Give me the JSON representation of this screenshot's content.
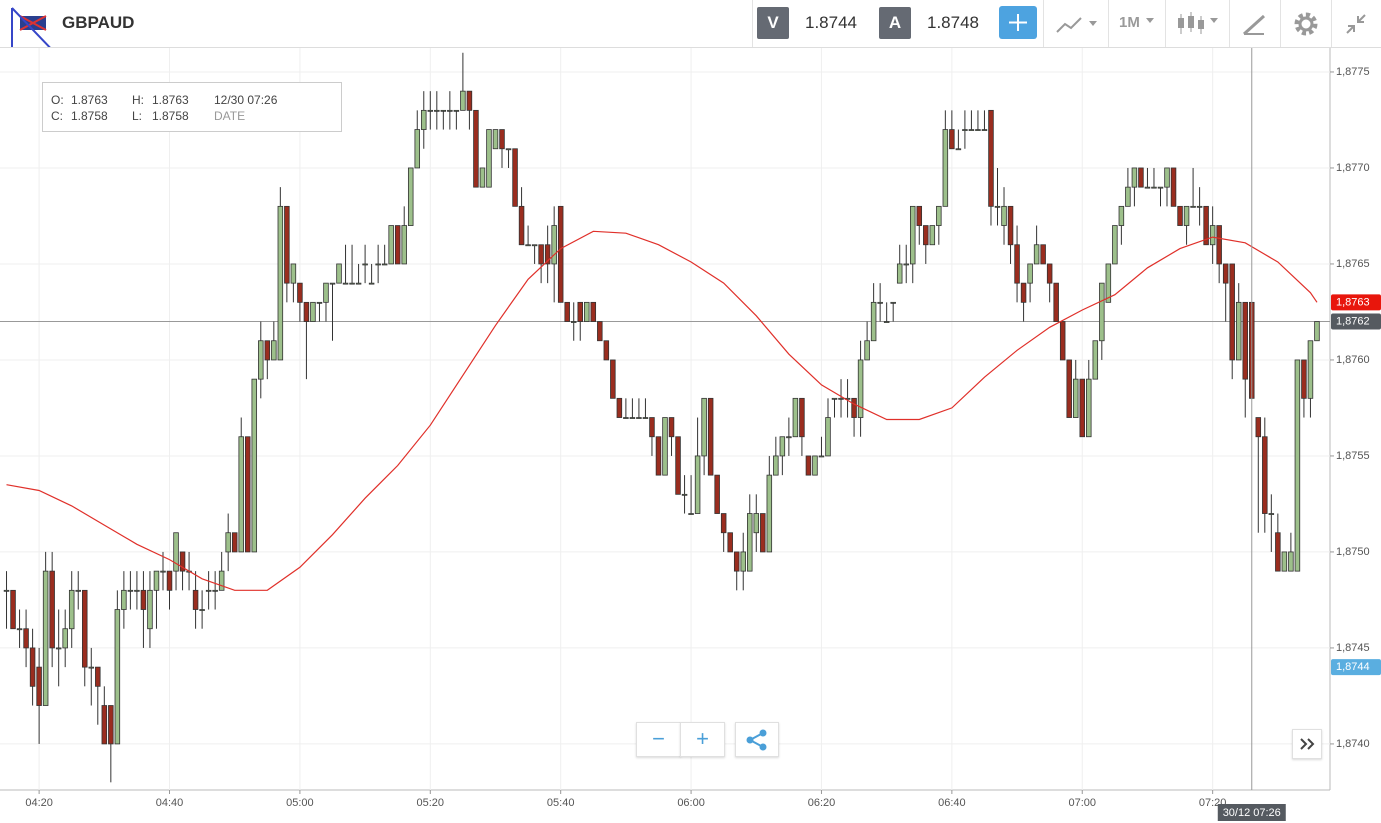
{
  "header": {
    "symbol": "GBPAUD",
    "sell_label": "V",
    "sell_price": "1.8744",
    "buy_label": "A",
    "buy_price": "1.8748",
    "timeframe": "1M"
  },
  "info": {
    "open_label": "O:",
    "open": "1.8763",
    "high_label": "H:",
    "high": "1.8763",
    "date": "12/30 07:26",
    "close_label": "C:",
    "close": "1.8758",
    "low_label": "L:",
    "low": "1.8758",
    "date_label": "DATE"
  },
  "chart_data": {
    "type": "candlestick",
    "up_color": "#9dc08b",
    "down_color": "#9a2d1f",
    "grid": true,
    "xlim": [
      "04:14",
      "07:38"
    ],
    "xticks": [
      "04:20",
      "04:40",
      "05:00",
      "05:20",
      "05:40",
      "06:00",
      "06:20",
      "06:40",
      "07:00",
      "07:20"
    ],
    "ylim": [
      1.87376,
      1.87763
    ],
    "yticks": [
      {
        "value": 1.874,
        "label": "1,8740"
      },
      {
        "value": 1.8745,
        "label": "1,8745"
      },
      {
        "value": 1.875,
        "label": "1,8750"
      },
      {
        "value": 1.8755,
        "label": "1,8755"
      },
      {
        "value": 1.876,
        "label": "1,8760"
      },
      {
        "value": 1.8765,
        "label": "1,8765"
      },
      {
        "value": 1.877,
        "label": "1,8770"
      },
      {
        "value": 1.8775,
        "label": "1,8775"
      }
    ],
    "x": [
      "04:15",
      "04:16",
      "04:17",
      "04:18",
      "04:19",
      "04:20",
      "04:21",
      "04:22",
      "04:23",
      "04:24",
      "04:25",
      "04:26",
      "04:27",
      "04:28",
      "04:29",
      "04:30",
      "04:31",
      "04:32",
      "04:33",
      "04:34",
      "04:35",
      "04:36",
      "04:37",
      "04:38",
      "04:39",
      "04:40",
      "04:41",
      "04:42",
      "04:43",
      "04:44",
      "04:45",
      "04:46",
      "04:47",
      "04:48",
      "04:49",
      "04:50",
      "04:51",
      "04:52",
      "04:53",
      "04:54",
      "04:55",
      "04:56",
      "04:57",
      "04:58",
      "04:59",
      "05:00",
      "05:01",
      "05:02",
      "05:03",
      "05:04",
      "05:05",
      "05:06",
      "05:07",
      "05:08",
      "05:09",
      "05:10",
      "05:11",
      "05:12",
      "05:13",
      "05:14",
      "05:15",
      "05:16",
      "05:17",
      "05:18",
      "05:19",
      "05:20",
      "05:21",
      "05:22",
      "05:23",
      "05:24",
      "05:25",
      "05:26",
      "05:27",
      "05:28",
      "05:29",
      "05:30",
      "05:31",
      "05:32",
      "05:33",
      "05:34",
      "05:35",
      "05:36",
      "05:37",
      "05:38",
      "05:39",
      "05:40",
      "05:41",
      "05:42",
      "05:43",
      "05:44",
      "05:45",
      "05:46",
      "05:47",
      "05:48",
      "05:49",
      "05:50",
      "05:51",
      "05:52",
      "05:53",
      "05:54",
      "05:55",
      "05:56",
      "05:57",
      "05:58",
      "05:59",
      "06:00",
      "06:01",
      "06:02",
      "06:03",
      "06:04",
      "06:05",
      "06:06",
      "06:07",
      "06:08",
      "06:09",
      "06:10",
      "06:11",
      "06:12",
      "06:13",
      "06:14",
      "06:15",
      "06:16",
      "06:17",
      "06:18",
      "06:19",
      "06:20",
      "06:21",
      "06:22",
      "06:23",
      "06:24",
      "06:25",
      "06:26",
      "06:27",
      "06:28",
      "06:29",
      "06:30",
      "06:31",
      "06:32",
      "06:33",
      "06:34",
      "06:35",
      "06:36",
      "06:37",
      "06:38",
      "06:39",
      "06:40",
      "06:41",
      "06:42",
      "06:43",
      "06:44",
      "06:45",
      "06:46",
      "06:47",
      "06:48",
      "06:49",
      "06:50",
      "06:51",
      "06:52",
      "06:53",
      "06:54",
      "06:55",
      "06:56",
      "06:57",
      "06:58",
      "06:59",
      "07:00",
      "07:01",
      "07:02",
      "07:03",
      "07:04",
      "07:05",
      "07:06",
      "07:07",
      "07:08",
      "07:09",
      "07:10",
      "07:11",
      "07:12",
      "07:13",
      "07:14",
      "07:15",
      "07:16",
      "07:17",
      "07:18",
      "07:19",
      "07:20",
      "07:21",
      "07:22",
      "07:23",
      "07:24",
      "07:25",
      "07:26",
      "07:27",
      "07:28",
      "07:29",
      "07:30",
      "07:31",
      "07:32",
      "07:33",
      "07:34",
      "07:35",
      "07:36"
    ],
    "open": [
      1.8748,
      1.8748,
      1.8746,
      1.8746,
      1.8745,
      1.8744,
      1.8742,
      1.8749,
      1.8745,
      1.8745,
      1.8746,
      1.8748,
      1.8748,
      1.8744,
      1.8744,
      1.8742,
      1.8742,
      1.874,
      1.8747,
      1.8748,
      1.8748,
      1.8748,
      1.8746,
      1.8748,
      1.8749,
      1.8749,
      1.8749,
      1.875,
      1.8749,
      1.8748,
      1.8747,
      1.8748,
      1.8748,
      1.8748,
      1.875,
      1.8751,
      1.875,
      1.8756,
      1.875,
      1.8759,
      1.8761,
      1.876,
      1.876,
      1.8768,
      1.8764,
      1.8764,
      1.8763,
      1.8762,
      1.8763,
      1.8763,
      1.8764,
      1.8764,
      1.8764,
      1.8764,
      1.8764,
      1.8765,
      1.8764,
      1.8765,
      1.8765,
      1.8765,
      1.8767,
      1.8765,
      1.8767,
      1.877,
      1.8772,
      1.8773,
      1.8773,
      1.8773,
      1.8773,
      1.8773,
      1.8773,
      1.8774,
      1.8773,
      1.8769,
      1.8769,
      1.8771,
      1.8772,
      1.8771,
      1.8771,
      1.8768,
      1.8766,
      1.8766,
      1.8766,
      1.8766,
      1.8765,
      1.8768,
      1.8763,
      1.8762,
      1.8763,
      1.8762,
      1.8763,
      1.8762,
      1.8761,
      1.876,
      1.8758,
      1.8757,
      1.8757,
      1.8757,
      1.8757,
      1.8757,
      1.8756,
      1.8754,
      1.8757,
      1.8756,
      1.8753,
      1.8752,
      1.8752,
      1.8755,
      1.8758,
      1.8754,
      1.8752,
      1.8751,
      1.875,
      1.8749,
      1.8749,
      1.8751,
      1.8752,
      1.875,
      1.8754,
      1.8755,
      1.8756,
      1.8756,
      1.8758,
      1.8755,
      1.8754,
      1.8755,
      1.8755,
      1.8758,
      1.8758,
      1.8758,
      1.8758,
      1.8757,
      1.876,
      1.8761,
      1.8763,
      1.8762,
      1.8763,
      1.8764,
      1.8765,
      1.8765,
      1.8768,
      1.8767,
      1.8766,
      1.8767,
      1.8768,
      1.8772,
      1.8771,
      1.8772,
      1.8772,
      1.8772,
      1.8772,
      1.8773,
      1.8768,
      1.8767,
      1.8768,
      1.8766,
      1.8764,
      1.8764,
      1.8765,
      1.8766,
      1.8765,
      1.8764,
      1.8762,
      1.876,
      1.8757,
      1.8759,
      1.8756,
      1.8759,
      1.8761,
      1.8763,
      1.8765,
      1.8767,
      1.8768,
      1.8769,
      1.877,
      1.8769,
      1.8769,
      1.8769,
      1.8769,
      1.877,
      1.8768,
      1.8767,
      1.8768,
      1.8768,
      1.8768,
      1.8766,
      1.8767,
      1.8765,
      1.8765,
      1.876,
      1.8763,
      1.8763,
      1.8757,
      1.8756,
      1.8752,
      1.8751,
      1.8749,
      1.8749,
      1.8749,
      1.876,
      1.8758,
      1.8761
    ],
    "high": [
      1.8749,
      1.8748,
      1.8747,
      1.8747,
      1.8746,
      1.8745,
      1.875,
      1.875,
      1.8747,
      1.8747,
      1.8749,
      1.8749,
      1.8748,
      1.8745,
      1.8744,
      1.8743,
      1.8742,
      1.8748,
      1.8749,
      1.8749,
      1.8749,
      1.8749,
      1.8749,
      1.8749,
      1.875,
      1.8749,
      1.8751,
      1.875,
      1.875,
      1.8749,
      1.8748,
      1.8749,
      1.8749,
      1.875,
      1.8752,
      1.8751,
      1.8757,
      1.8756,
      1.8759,
      1.8762,
      1.8761,
      1.8762,
      1.8769,
      1.8768,
      1.8765,
      1.8764,
      1.8763,
      1.8763,
      1.8763,
      1.8764,
      1.8764,
      1.8765,
      1.8766,
      1.8766,
      1.8765,
      1.8766,
      1.8765,
      1.8766,
      1.8766,
      1.8767,
      1.8767,
      1.8768,
      1.877,
      1.8773,
      1.8774,
      1.8774,
      1.8774,
      1.8773,
      1.8774,
      1.8773,
      1.8776,
      1.8774,
      1.8773,
      1.877,
      1.8772,
      1.8772,
      1.8772,
      1.8771,
      1.8771,
      1.8769,
      1.8767,
      1.8766,
      1.8766,
      1.8767,
      1.8768,
      1.8768,
      1.8763,
      1.8763,
      1.8763,
      1.8763,
      1.8763,
      1.8762,
      1.8761,
      1.876,
      1.8758,
      1.8758,
      1.8758,
      1.8758,
      1.8758,
      1.8757,
      1.8756,
      1.8757,
      1.8757,
      1.8756,
      1.8754,
      1.8754,
      1.8757,
      1.8758,
      1.8758,
      1.8754,
      1.8752,
      1.8751,
      1.875,
      1.8751,
      1.8753,
      1.8753,
      1.8752,
      1.8755,
      1.8756,
      1.8756,
      1.8757,
      1.8758,
      1.8758,
      1.8755,
      1.8755,
      1.8756,
      1.8758,
      1.8758,
      1.8759,
      1.8759,
      1.8758,
      1.8761,
      1.8762,
      1.8764,
      1.8764,
      1.8763,
      1.8763,
      1.8766,
      1.8766,
      1.8768,
      1.8768,
      1.8767,
      1.8767,
      1.8768,
      1.8773,
      1.8773,
      1.8772,
      1.8773,
      1.8773,
      1.8773,
      1.8773,
      1.8773,
      1.877,
      1.8769,
      1.8768,
      1.8767,
      1.8764,
      1.8765,
      1.8767,
      1.8766,
      1.8765,
      1.8764,
      1.8762,
      1.876,
      1.876,
      1.8759,
      1.876,
      1.8761,
      1.8764,
      1.8765,
      1.8767,
      1.8768,
      1.877,
      1.877,
      1.877,
      1.877,
      1.877,
      1.8769,
      1.877,
      1.877,
      1.8768,
      1.8768,
      1.877,
      1.8769,
      1.8768,
      1.8768,
      1.8767,
      1.8765,
      1.8765,
      1.8764,
      1.8763,
      1.8763,
      1.8757,
      1.8757,
      1.8753,
      1.8752,
      1.875,
      1.8751,
      1.876,
      1.876,
      1.8761,
      1.8762
    ],
    "low": [
      1.8746,
      1.8746,
      1.8745,
      1.8744,
      1.8742,
      1.874,
      1.8742,
      1.8744,
      1.8743,
      1.8744,
      1.8745,
      1.8747,
      1.8743,
      1.8742,
      1.8741,
      1.874,
      1.8738,
      1.874,
      1.8746,
      1.8747,
      1.8747,
      1.8745,
      1.8745,
      1.8746,
      1.8748,
      1.8747,
      1.8748,
      1.8748,
      1.8748,
      1.8746,
      1.8746,
      1.8747,
      1.8747,
      1.8748,
      1.8749,
      1.875,
      1.875,
      1.875,
      1.875,
      1.8758,
      1.8759,
      1.876,
      1.876,
      1.8763,
      1.8763,
      1.8762,
      1.8759,
      1.8762,
      1.8762,
      1.8762,
      1.8761,
      1.8764,
      1.8764,
      1.8764,
      1.8764,
      1.8764,
      1.8764,
      1.8764,
      1.8765,
      1.8765,
      1.8765,
      1.8765,
      1.8767,
      1.877,
      1.8771,
      1.8772,
      1.8772,
      1.8772,
      1.8772,
      1.8772,
      1.8773,
      1.8772,
      1.8769,
      1.8769,
      1.8769,
      1.8771,
      1.877,
      1.877,
      1.8768,
      1.8766,
      1.8766,
      1.8765,
      1.8764,
      1.8764,
      1.8763,
      1.8763,
      1.8762,
      1.8761,
      1.8761,
      1.8762,
      1.8762,
      1.8761,
      1.876,
      1.8758,
      1.8757,
      1.8757,
      1.8757,
      1.8757,
      1.8757,
      1.8755,
      1.8754,
      1.8754,
      1.8755,
      1.8753,
      1.8752,
      1.8752,
      1.8752,
      1.8754,
      1.8754,
      1.8752,
      1.875,
      1.875,
      1.8748,
      1.8748,
      1.8749,
      1.875,
      1.875,
      1.875,
      1.8754,
      1.8754,
      1.8755,
      1.8756,
      1.8755,
      1.8754,
      1.8754,
      1.8755,
      1.8755,
      1.8757,
      1.8757,
      1.8757,
      1.8756,
      1.8756,
      1.876,
      1.8761,
      1.8762,
      1.8762,
      1.8762,
      1.8764,
      1.8764,
      1.8764,
      1.8766,
      1.8765,
      1.8766,
      1.8766,
      1.8768,
      1.8771,
      1.8771,
      1.8771,
      1.8772,
      1.8772,
      1.8772,
      1.8767,
      1.8767,
      1.8766,
      1.8765,
      1.8763,
      1.8762,
      1.8763,
      1.8765,
      1.8765,
      1.8763,
      1.8762,
      1.876,
      1.8757,
      1.8757,
      1.8756,
      1.8756,
      1.8759,
      1.876,
      1.8763,
      1.8765,
      1.8766,
      1.8768,
      1.8768,
      1.8769,
      1.8769,
      1.8769,
      1.8768,
      1.8768,
      1.8768,
      1.8767,
      1.8766,
      1.8768,
      1.8767,
      1.8766,
      1.8765,
      1.8764,
      1.8762,
      1.8759,
      1.876,
      1.8757,
      1.8758,
      1.8751,
      1.8751,
      1.875,
      1.8749,
      1.8749,
      1.8749,
      1.8749,
      1.8757,
      1.8757,
      1.8761
    ],
    "close": [
      1.8748,
      1.8746,
      1.8746,
      1.8745,
      1.8743,
      1.8742,
      1.8749,
      1.8745,
      1.8745,
      1.8746,
      1.8748,
      1.8748,
      1.8744,
      1.8744,
      1.8743,
      1.874,
      1.874,
      1.8747,
      1.8748,
      1.8748,
      1.8748,
      1.8747,
      1.8748,
      1.8749,
      1.8749,
      1.8748,
      1.8751,
      1.8749,
      1.8749,
      1.8747,
      1.8747,
      1.8748,
      1.8748,
      1.8749,
      1.8751,
      1.875,
      1.8756,
      1.875,
      1.8759,
      1.8761,
      1.876,
      1.8761,
      1.8768,
      1.8764,
      1.8765,
      1.8763,
      1.8762,
      1.8763,
      1.8763,
      1.8764,
      1.8764,
      1.8765,
      1.8764,
      1.8764,
      1.8764,
      1.8765,
      1.8764,
      1.8765,
      1.8765,
      1.8767,
      1.8765,
      1.8767,
      1.877,
      1.8772,
      1.8773,
      1.8773,
      1.8773,
      1.8773,
      1.8773,
      1.8773,
      1.8774,
      1.8773,
      1.8769,
      1.877,
      1.8772,
      1.8772,
      1.8771,
      1.8771,
      1.8768,
      1.8766,
      1.8766,
      1.8766,
      1.8765,
      1.8765,
      1.8767,
      1.8763,
      1.8762,
      1.8762,
      1.8762,
      1.8763,
      1.8762,
      1.8761,
      1.876,
      1.8758,
      1.8757,
      1.8757,
      1.8757,
      1.8757,
      1.8757,
      1.8756,
      1.8754,
      1.8757,
      1.8756,
      1.8753,
      1.8753,
      1.8752,
      1.8755,
      1.8758,
      1.8754,
      1.8752,
      1.8751,
      1.875,
      1.8749,
      1.875,
      1.8752,
      1.8752,
      1.875,
      1.8754,
      1.8755,
      1.8756,
      1.8756,
      1.8758,
      1.8756,
      1.8754,
      1.8755,
      1.8755,
      1.8757,
      1.8758,
      1.8758,
      1.8758,
      1.8757,
      1.876,
      1.8761,
      1.8763,
      1.8763,
      1.8762,
      1.8763,
      1.8765,
      1.8765,
      1.8768,
      1.8767,
      1.8766,
      1.8767,
      1.8768,
      1.8772,
      1.8771,
      1.8771,
      1.8772,
      1.8772,
      1.8772,
      1.8772,
      1.8768,
      1.8768,
      1.8768,
      1.8766,
      1.8764,
      1.8763,
      1.8765,
      1.8766,
      1.8765,
      1.8764,
      1.8762,
      1.876,
      1.8757,
      1.8759,
      1.8756,
      1.8759,
      1.8761,
      1.8764,
      1.8765,
      1.8767,
      1.8768,
      1.8769,
      1.877,
      1.8769,
      1.8769,
      1.8769,
      1.8769,
      1.877,
      1.8768,
      1.8767,
      1.8768,
      1.8768,
      1.8768,
      1.8766,
      1.8767,
      1.8765,
      1.8764,
      1.876,
      1.8763,
      1.8759,
      1.8758,
      1.8756,
      1.8752,
      1.8752,
      1.8749,
      1.875,
      1.875,
      1.876,
      1.8758,
      1.8761,
      1.8762
    ],
    "ma": {
      "color": "#e0302a",
      "x": [
        "04:15",
        "04:20",
        "04:25",
        "04:30",
        "04:35",
        "04:40",
        "04:45",
        "04:50",
        "04:55",
        "05:00",
        "05:05",
        "05:10",
        "05:15",
        "05:20",
        "05:25",
        "05:30",
        "05:35",
        "05:40",
        "05:45",
        "05:50",
        "05:55",
        "06:00",
        "06:05",
        "06:10",
        "06:15",
        "06:20",
        "06:25",
        "06:30",
        "06:35",
        "06:40",
        "06:45",
        "06:50",
        "06:55",
        "07:00",
        "07:05",
        "07:10",
        "07:15",
        "07:20",
        "07:25",
        "07:30",
        "07:35",
        "07:36"
      ],
      "values": [
        1.87535,
        1.87532,
        1.87524,
        1.87514,
        1.87504,
        1.87496,
        1.87486,
        1.8748,
        1.8748,
        1.87492,
        1.87509,
        1.87528,
        1.87545,
        1.87566,
        1.87592,
        1.87618,
        1.87642,
        1.87658,
        1.87667,
        1.87666,
        1.8766,
        1.87651,
        1.8764,
        1.87623,
        1.87603,
        1.87587,
        1.87577,
        1.87569,
        1.87569,
        1.87575,
        1.87591,
        1.87605,
        1.87617,
        1.87626,
        1.87634,
        1.87648,
        1.87658,
        1.87664,
        1.87661,
        1.87651,
        1.87635,
        1.8763
      ]
    },
    "price_tags": [
      {
        "value": 1.8763,
        "label": "1,8763",
        "color": "#e8160c"
      },
      {
        "value": 1.8762,
        "label": "1,8762",
        "color": "#555a60"
      },
      {
        "value": 1.8744,
        "label": "1,8744",
        "color": "#5aaee0"
      }
    ],
    "price_line": 1.8762,
    "crosshair": {
      "x": "07:26",
      "label": "30/12 07:26"
    }
  }
}
